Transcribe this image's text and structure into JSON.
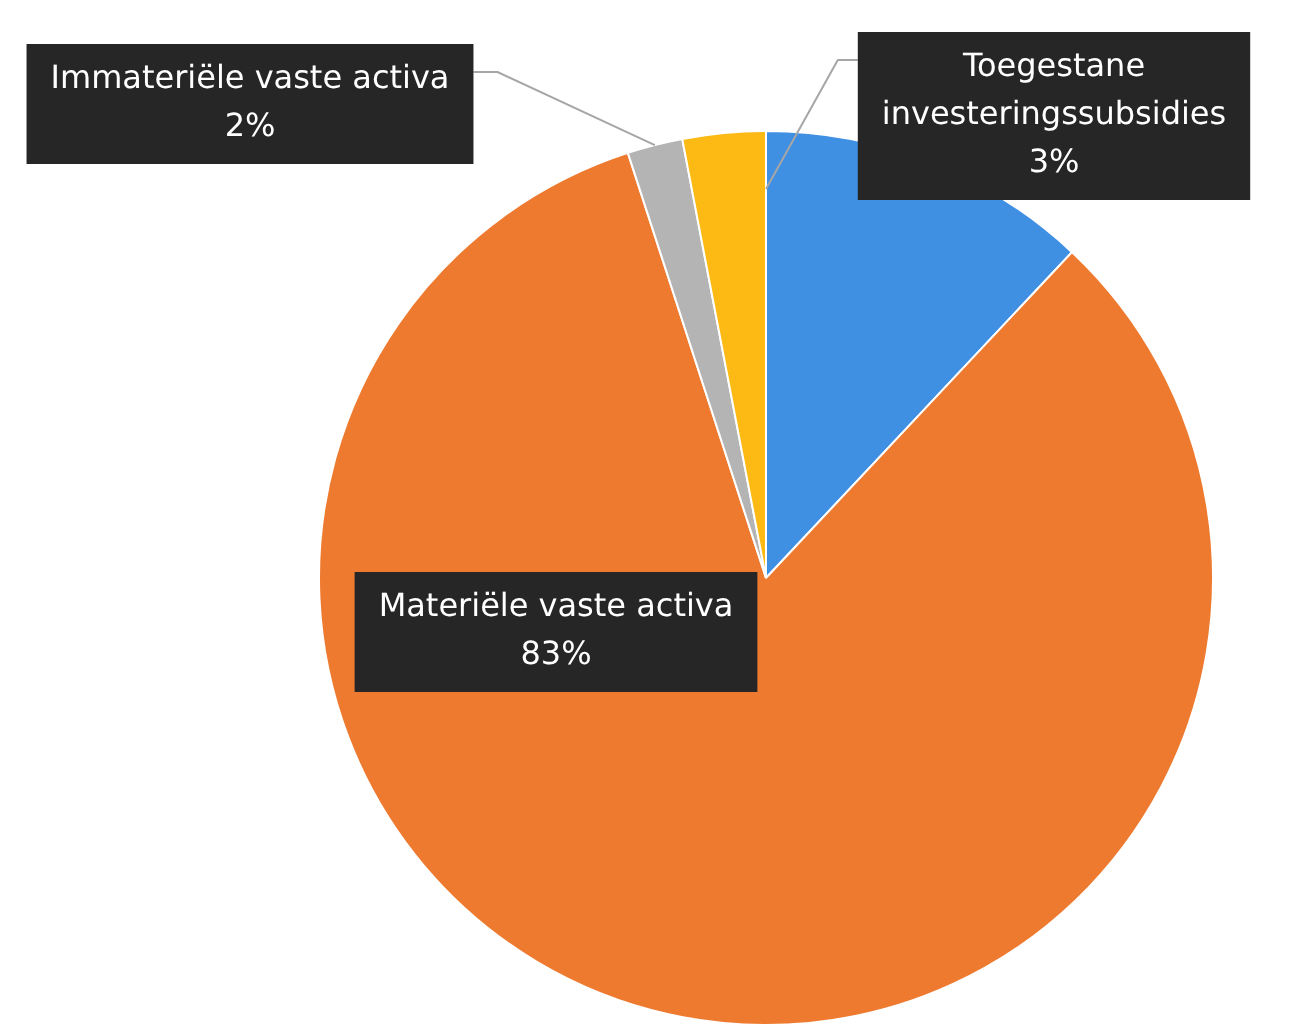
{
  "chart_data": {
    "type": "pie",
    "categories": [
      null,
      "Materiële vaste activa",
      "Immateriële vaste activa",
      "Toegestane investeringssubsidies"
    ],
    "values": [
      12,
      83,
      2,
      3
    ],
    "colors": [
      "#3f8fe3",
      "#ee7a2f",
      "#b4b4b4",
      "#fdb914"
    ],
    "value_labels": [
      null,
      "83%",
      "2%",
      "3%"
    ]
  }
}
